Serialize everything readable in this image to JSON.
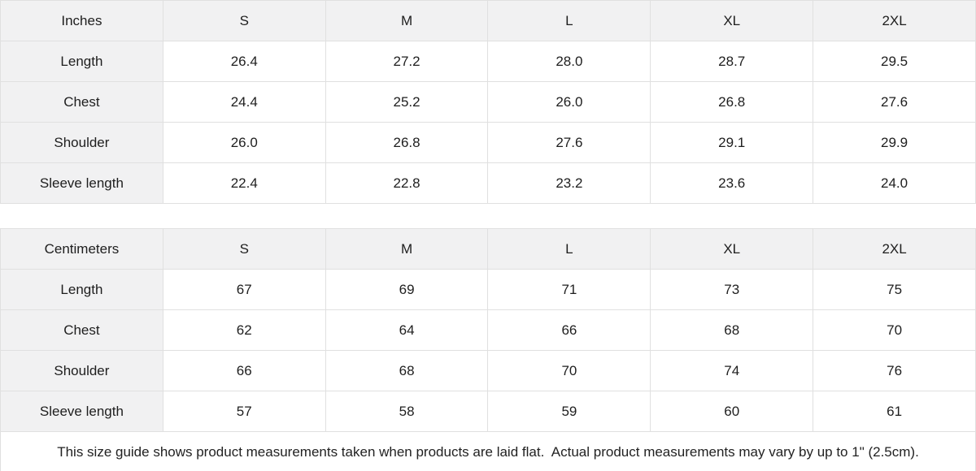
{
  "tables": [
    {
      "unit_label": "Inches",
      "sizes": [
        "S",
        "M",
        "L",
        "XL",
        "2XL"
      ],
      "rows": [
        {
          "label": "Length",
          "values": [
            "26.4",
            "27.2",
            "28.0",
            "28.7",
            "29.5"
          ]
        },
        {
          "label": "Chest",
          "values": [
            "24.4",
            "25.2",
            "26.0",
            "26.8",
            "27.6"
          ]
        },
        {
          "label": "Shoulder",
          "values": [
            "26.0",
            "26.8",
            "27.6",
            "29.1",
            "29.9"
          ]
        },
        {
          "label": "Sleeve length",
          "values": [
            "22.4",
            "22.8",
            "23.2",
            "23.6",
            "24.0"
          ]
        }
      ]
    },
    {
      "unit_label": "Centimeters",
      "sizes": [
        "S",
        "M",
        "L",
        "XL",
        "2XL"
      ],
      "rows": [
        {
          "label": "Length",
          "values": [
            "67",
            "69",
            "71",
            "73",
            "75"
          ]
        },
        {
          "label": "Chest",
          "values": [
            "62",
            "64",
            "66",
            "68",
            "70"
          ]
        },
        {
          "label": "Shoulder",
          "values": [
            "66",
            "68",
            "70",
            "74",
            "76"
          ]
        },
        {
          "label": "Sleeve length",
          "values": [
            "57",
            "58",
            "59",
            "60",
            "61"
          ]
        }
      ]
    }
  ],
  "footer": {
    "note": "This size guide shows product measurements taken when products are laid flat.  Actual product measurements may vary by up to 1\" (2.5cm)."
  },
  "colors": {
    "header_bg": "#f1f1f2",
    "border": "#e0e0e0",
    "text": "#1e1e1e"
  }
}
